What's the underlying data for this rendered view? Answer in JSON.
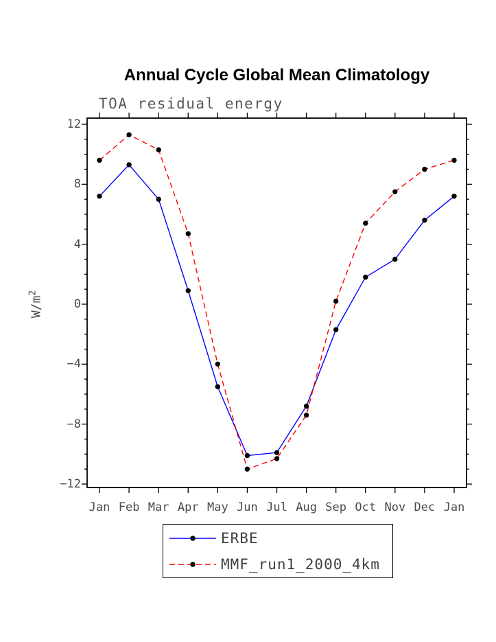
{
  "chart_data": {
    "type": "line",
    "title": "Annual Cycle Global Mean Climatology",
    "subtitle": "TOA residual energy",
    "xlabel": "",
    "ylabel": "W/m^2",
    "ylabel_base": "W/m",
    "ylabel_exp": "2",
    "categories": [
      "Jan",
      "Feb",
      "Mar",
      "Apr",
      "May",
      "Jun",
      "Jul",
      "Aug",
      "Sep",
      "Oct",
      "Nov",
      "Dec",
      "Jan"
    ],
    "series": [
      {
        "name": "ERBE",
        "color": "#0000ff",
        "line_style": "solid",
        "values": [
          7.2,
          9.3,
          7.0,
          0.9,
          -5.5,
          -10.1,
          -9.9,
          -6.8,
          -1.7,
          1.8,
          3.0,
          5.6,
          7.2
        ]
      },
      {
        "name": "MMF_run1_2000_4km",
        "color": "#ff0000",
        "line_style": "dashed",
        "values": [
          9.6,
          11.3,
          10.3,
          4.7,
          -4.0,
          -11.0,
          -10.3,
          -7.4,
          0.2,
          5.4,
          7.5,
          9.0,
          9.6
        ]
      }
    ],
    "marker": "circle",
    "marker_color": "#000000",
    "ylim": [
      -12,
      12
    ],
    "yticks": [
      12,
      8,
      4,
      0,
      -4,
      -8,
      -12
    ],
    "ytick_labels": [
      "12",
      "8",
      "4",
      "0",
      "−4",
      "−8",
      "−12"
    ],
    "minor_tick_step": 1,
    "grid": false,
    "legend_position": "bottom",
    "frame_color": "#000000",
    "text_color": "#4a4a4a"
  }
}
